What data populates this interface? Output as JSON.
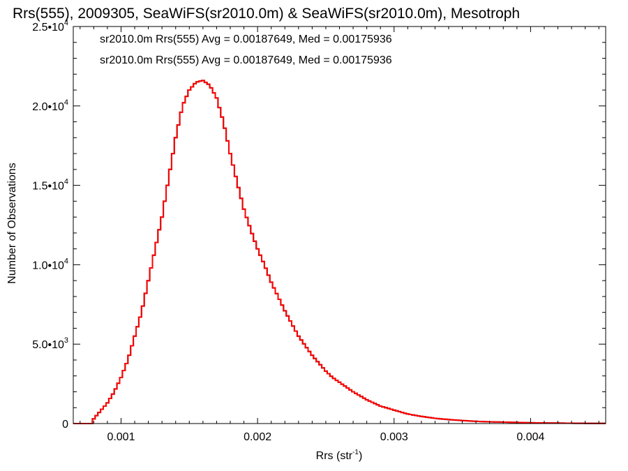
{
  "chart_data": {
    "type": "histogram",
    "title": "Rrs(555), 2009305, SeaWiFS(sr2010.0m) & SeaWiFS(sr2010.0m), Mesotroph",
    "xlabel_main": "Rrs (str",
    "xlabel_sup": "-1",
    "xlabel_tail": ")",
    "ylabel": "Number of Observations",
    "xlim": [
      0.00065,
      0.00455
    ],
    "ylim": [
      0,
      25000
    ],
    "x_ticks": [
      {
        "value": 0.001,
        "label": "0.001"
      },
      {
        "value": 0.002,
        "label": "0.002"
      },
      {
        "value": 0.003,
        "label": "0.003"
      },
      {
        "value": 0.004,
        "label": "0.004"
      }
    ],
    "y_ticks": [
      {
        "value": 0,
        "mant": "0",
        "exp": ""
      },
      {
        "value": 5000,
        "mant": "5.0•10",
        "exp": "3"
      },
      {
        "value": 10000,
        "mant": "1.0•10",
        "exp": "4"
      },
      {
        "value": 15000,
        "mant": "1.5•10",
        "exp": "4"
      },
      {
        "value": 20000,
        "mant": "2.0•10",
        "exp": "4"
      },
      {
        "value": 25000,
        "mant": "2.5•10",
        "exp": "4"
      }
    ],
    "legend": [
      {
        "text": "sr2010.0m Rrs(555) Avg = 0.00187649, Med = 0.00175936",
        "color": "#000000"
      },
      {
        "text": "sr2010.0m Rrs(555) Avg = 0.00187649, Med = 0.00175936",
        "color": "#ff0000"
      }
    ],
    "series": [
      {
        "color": "#000000"
      },
      {
        "color": "#ff0000"
      }
    ],
    "bin_width": 2e-05,
    "x": [
      0.0007,
      0.0008,
      0.0008,
      0.00085,
      0.0009,
      0.00095,
      0.001,
      0.00105,
      0.0011,
      0.00115,
      0.0012,
      0.00125,
      0.0013,
      0.00135,
      0.0014,
      0.00145,
      0.0015,
      0.00155,
      0.0016,
      0.00165,
      0.0017,
      0.00175,
      0.0018,
      0.00185,
      0.0019,
      0.00195,
      0.002,
      0.00205,
      0.0021,
      0.00215,
      0.0022,
      0.00225,
      0.0023,
      0.00235,
      0.0024,
      0.00245,
      0.0025,
      0.00255,
      0.0026,
      0.0027,
      0.0028,
      0.0029,
      0.003,
      0.0031,
      0.0032,
      0.0033,
      0.0034,
      0.0035,
      0.0036,
      0.0037,
      0.0038,
      0.0039,
      0.004,
      0.0041,
      0.0042,
      0.0043,
      0.0044,
      0.0045
    ],
    "y": [
      0,
      0,
      300,
      800,
      1300,
      2000,
      2900,
      4000,
      5500,
      7000,
      9000,
      11000,
      13000,
      15500,
      18000,
      20000,
      21000,
      21500,
      21600,
      21300,
      20500,
      19000,
      17000,
      15200,
      13500,
      12200,
      11000,
      10000,
      8900,
      8000,
      7100,
      6300,
      5500,
      4900,
      4300,
      3800,
      3300,
      2900,
      2600,
      2000,
      1500,
      1100,
      850,
      600,
      450,
      330,
      250,
      190,
      140,
      110,
      90,
      70,
      50,
      40,
      30,
      20,
      15,
      10
    ]
  }
}
